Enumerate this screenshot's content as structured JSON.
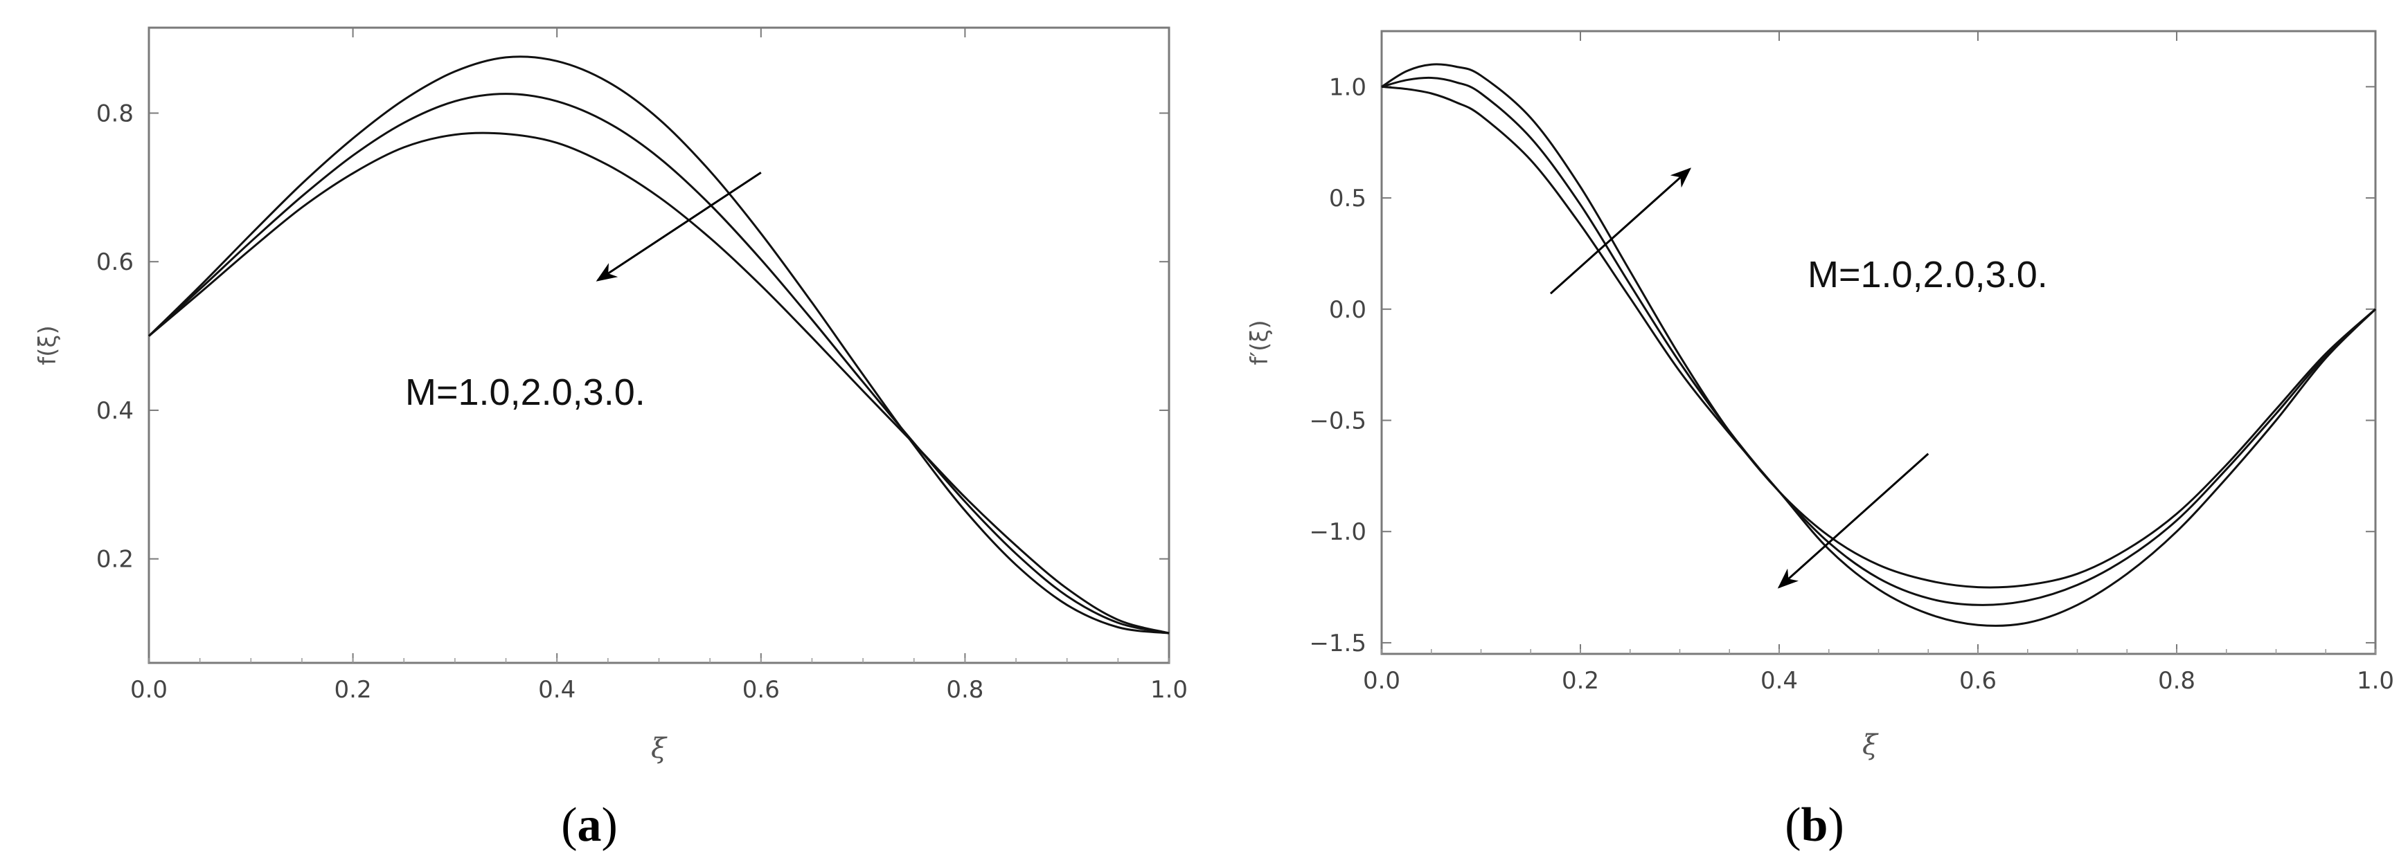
{
  "chart_data": [
    {
      "type": "line",
      "panel_label": [
        "(",
        "a",
        ")"
      ],
      "xlabel": "ξ",
      "ylabel": "f(ξ)",
      "xlim": [
        0.0,
        1.0
      ],
      "ylim": [
        0.06,
        0.915
      ],
      "xticks": [
        "0.0",
        "0.2",
        "0.4",
        "0.6",
        "0.8",
        "1.0"
      ],
      "yticks": [
        "0.2",
        "0.4",
        "0.6",
        "0.8"
      ],
      "annotation": "M=1.0,2.0,3.0.",
      "arrow": {
        "from": [
          0.6,
          0.72
        ],
        "to": [
          0.44,
          0.575
        ]
      },
      "series": [
        {
          "x": [
            0,
            0.05,
            0.1,
            0.15,
            0.2,
            0.25,
            0.3,
            0.35,
            0.4,
            0.45,
            0.5,
            0.55,
            0.6,
            0.65,
            0.7,
            0.75,
            0.8,
            0.85,
            0.9,
            0.95,
            1.0
          ],
          "values": [
            0.5,
            0.567,
            0.637,
            0.705,
            0.766,
            0.818,
            0.856,
            0.875,
            0.87,
            0.842,
            0.792,
            0.722,
            0.638,
            0.545,
            0.448,
            0.353,
            0.265,
            0.192,
            0.138,
            0.108,
            0.1
          ]
        },
        {
          "x": [
            0,
            0.05,
            0.1,
            0.15,
            0.2,
            0.25,
            0.3,
            0.35,
            0.4,
            0.45,
            0.5,
            0.55,
            0.6,
            0.65,
            0.7,
            0.75,
            0.8,
            0.85,
            0.9,
            0.95,
            1.0
          ],
          "values": [
            0.5,
            0.563,
            0.627,
            0.688,
            0.743,
            0.787,
            0.816,
            0.826,
            0.816,
            0.787,
            0.74,
            0.677,
            0.603,
            0.522,
            0.438,
            0.356,
            0.277,
            0.207,
            0.15,
            0.114,
            0.1
          ]
        },
        {
          "x": [
            0,
            0.05,
            0.1,
            0.15,
            0.2,
            0.25,
            0.3,
            0.35,
            0.4,
            0.45,
            0.5,
            0.55,
            0.6,
            0.65,
            0.7,
            0.75,
            0.8,
            0.85,
            0.9,
            0.95,
            1.0
          ],
          "values": [
            0.5,
            0.558,
            0.617,
            0.673,
            0.719,
            0.754,
            0.771,
            0.772,
            0.76,
            0.73,
            0.687,
            0.632,
            0.568,
            0.498,
            0.426,
            0.355,
            0.283,
            0.218,
            0.16,
            0.118,
            0.1
          ]
        }
      ]
    },
    {
      "type": "line",
      "panel_label": [
        "(",
        "b",
        ")"
      ],
      "xlabel": "ξ",
      "ylabel": "f′(ξ)",
      "xlim": [
        0.0,
        1.0
      ],
      "ylim": [
        -1.55,
        1.25
      ],
      "xticks": [
        "0.0",
        "0.2",
        "0.4",
        "0.6",
        "0.8",
        "1.0"
      ],
      "yticks": [
        "1.0",
        "0.5",
        "0.0",
        "−0.5",
        "−1.0",
        "−1.5"
      ],
      "annotation": "M=1.0,2.0,3.0.",
      "arrows": [
        {
          "from": [
            0.17,
            0.07
          ],
          "to": [
            0.31,
            0.63
          ]
        },
        {
          "from": [
            0.55,
            -0.65
          ],
          "to": [
            0.4,
            -1.25
          ]
        }
      ],
      "series": [
        {
          "x": [
            0,
            0.025,
            0.05,
            0.075,
            0.1,
            0.15,
            0.2,
            0.25,
            0.3,
            0.35,
            0.4,
            0.45,
            0.5,
            0.55,
            0.6,
            0.65,
            0.7,
            0.75,
            0.8,
            0.85,
            0.9,
            0.95,
            1.0
          ],
          "values": [
            1.0,
            1.07,
            1.1,
            1.09,
            1.05,
            0.86,
            0.55,
            0.17,
            -0.21,
            -0.55,
            -0.82,
            -1.02,
            -1.15,
            -1.22,
            -1.25,
            -1.24,
            -1.19,
            -1.08,
            -0.92,
            -0.7,
            -0.45,
            -0.2,
            0.0
          ]
        },
        {
          "x": [
            0,
            0.025,
            0.05,
            0.075,
            0.1,
            0.15,
            0.2,
            0.25,
            0.3,
            0.35,
            0.4,
            0.45,
            0.5,
            0.55,
            0.6,
            0.65,
            0.7,
            0.75,
            0.8,
            0.85,
            0.9,
            0.95,
            1.0
          ],
          "values": [
            1.0,
            1.03,
            1.04,
            1.02,
            0.97,
            0.77,
            0.47,
            0.11,
            -0.24,
            -0.55,
            -0.82,
            -1.05,
            -1.21,
            -1.3,
            -1.33,
            -1.31,
            -1.24,
            -1.12,
            -0.95,
            -0.72,
            -0.47,
            -0.21,
            0.0
          ]
        },
        {
          "x": [
            0,
            0.025,
            0.05,
            0.075,
            0.1,
            0.15,
            0.2,
            0.25,
            0.3,
            0.35,
            0.4,
            0.45,
            0.5,
            0.55,
            0.6,
            0.65,
            0.7,
            0.75,
            0.8,
            0.85,
            0.9,
            0.95,
            1.0
          ],
          "values": [
            1.0,
            0.99,
            0.97,
            0.93,
            0.87,
            0.67,
            0.38,
            0.05,
            -0.28,
            -0.56,
            -0.82,
            -1.08,
            -1.26,
            -1.37,
            -1.42,
            -1.41,
            -1.33,
            -1.19,
            -1.0,
            -0.76,
            -0.5,
            -0.22,
            0.0
          ]
        }
      ]
    }
  ]
}
